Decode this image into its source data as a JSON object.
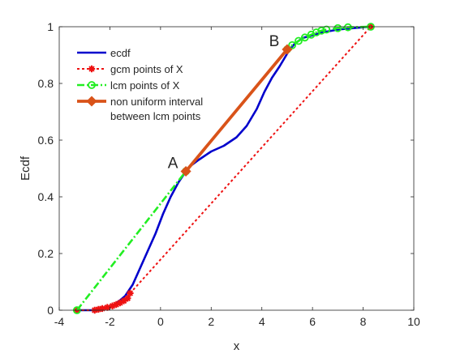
{
  "chart_data": {
    "type": "line",
    "title": "",
    "xlabel": "x",
    "ylabel": "Ecdf",
    "xlim": [
      -4,
      10
    ],
    "ylim": [
      0,
      1
    ],
    "xticks": [
      -4,
      -2,
      0,
      2,
      4,
      6,
      8,
      10
    ],
    "yticks": [
      0,
      0.2,
      0.4,
      0.6,
      0.8,
      1
    ],
    "xtick_labels": [
      "-4",
      "-2",
      "0",
      "2",
      "4",
      "6",
      "8",
      "10"
    ],
    "ytick_labels": [
      "0",
      "0.2",
      "0.4",
      "0.6",
      "0.8",
      "1"
    ],
    "grid": false,
    "legend_position": "top-left",
    "series": [
      {
        "name": "ecdf",
        "color": "#0000cc",
        "style": "solid",
        "marker": "none",
        "x": [
          -3.3,
          -2.5,
          -1.8,
          -1.4,
          -1.1,
          -0.8,
          -0.5,
          -0.2,
          0.1,
          0.4,
          0.7,
          1.0,
          1.2,
          1.5,
          2.0,
          2.5,
          3.0,
          3.4,
          3.8,
          4.1,
          4.4,
          4.7,
          4.9,
          5.1,
          5.3,
          5.6,
          6.0,
          6.4,
          7.0,
          7.6,
          8.3
        ],
        "y": [
          0.0,
          0.0,
          0.02,
          0.05,
          0.09,
          0.15,
          0.21,
          0.27,
          0.34,
          0.4,
          0.45,
          0.49,
          0.51,
          0.53,
          0.56,
          0.58,
          0.61,
          0.65,
          0.71,
          0.77,
          0.82,
          0.86,
          0.89,
          0.92,
          0.94,
          0.96,
          0.97,
          0.98,
          0.99,
          0.995,
          1.0
        ]
      },
      {
        "name": "gcm points of X",
        "color": "#ee1111",
        "style": "dotted",
        "marker": "asterisk",
        "x": [
          -3.3,
          -2.6,
          -2.45,
          -2.3,
          -2.1,
          -1.9,
          -1.75,
          -1.6,
          -1.45,
          -1.3,
          -1.2,
          8.3
        ],
        "y": [
          0.0,
          0.0,
          0.003,
          0.006,
          0.01,
          0.015,
          0.02,
          0.026,
          0.033,
          0.042,
          0.06,
          1.0
        ]
      },
      {
        "name": "lcm points of X",
        "color": "#22ee22",
        "style": "dashdot",
        "marker": "circle",
        "x": [
          -3.3,
          1.0,
          5.0,
          5.2,
          5.45,
          5.7,
          5.95,
          6.15,
          6.35,
          6.55,
          7.0,
          7.4,
          8.3
        ],
        "y": [
          0.0,
          0.49,
          0.92,
          0.935,
          0.95,
          0.962,
          0.972,
          0.98,
          0.986,
          0.99,
          0.995,
          0.998,
          1.0
        ]
      },
      {
        "name": "non uniform interval between lcm points",
        "color": "#d95319",
        "style": "solid",
        "marker": "diamond",
        "x": [
          1.0,
          5.0
        ],
        "y": [
          0.49,
          0.92
        ]
      }
    ],
    "annotations": [
      {
        "text": "A",
        "x": 1.0,
        "y": 0.49
      },
      {
        "text": "B",
        "x": 5.0,
        "y": 0.92
      }
    ],
    "legend": {
      "entries": [
        {
          "label_lines": [
            "ecdf"
          ]
        },
        {
          "label_lines": [
            "gcm points of X"
          ]
        },
        {
          "label_lines": [
            "lcm points of X"
          ]
        },
        {
          "label_lines": [
            "non uniform interval",
            "between lcm points"
          ]
        }
      ]
    }
  }
}
